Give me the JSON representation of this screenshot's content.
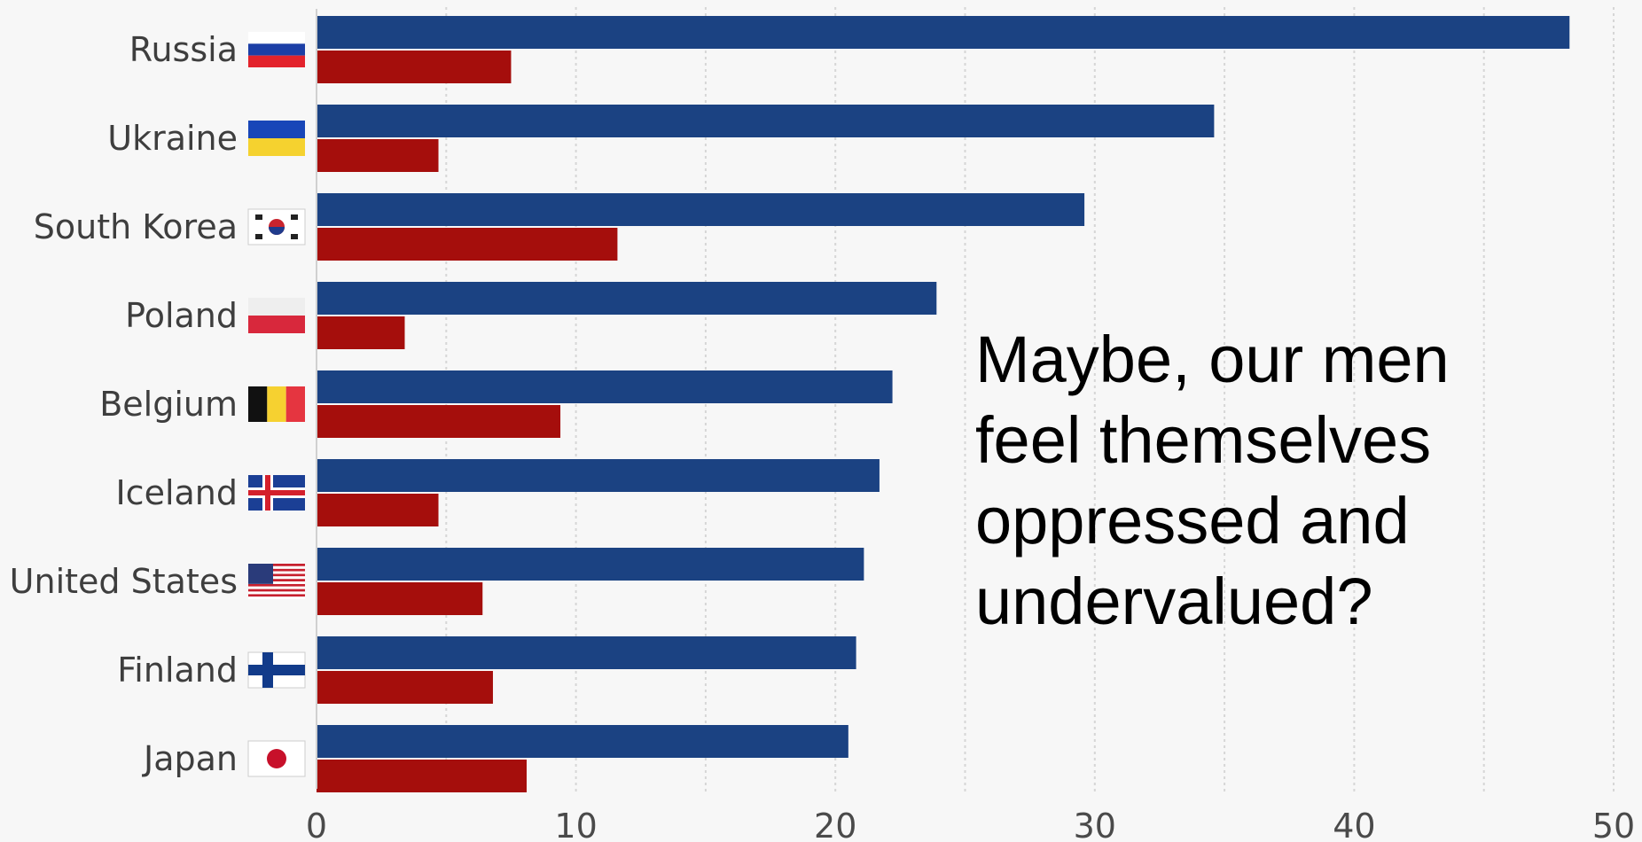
{
  "chart_data": {
    "type": "bar",
    "orientation": "horizontal",
    "categories": [
      "Russia",
      "Ukraine",
      "South Korea",
      "Poland",
      "Belgium",
      "Iceland",
      "United States",
      "Finland",
      "Japan"
    ],
    "series": [
      {
        "color": "#1b4282",
        "values": [
          48.3,
          34.6,
          29.6,
          23.9,
          22.2,
          21.7,
          21.1,
          20.8,
          20.5
        ]
      },
      {
        "color": "#a50e0c",
        "values": [
          7.5,
          4.7,
          11.6,
          3.4,
          9.4,
          4.7,
          6.4,
          6.8,
          8.1
        ]
      }
    ],
    "xticks": [
      "0",
      "10",
      "20",
      "30",
      "40",
      "50"
    ],
    "xlim": [
      0,
      50
    ],
    "grid": true,
    "flags": [
      "russia-flag",
      "ukraine-flag",
      "south-korea-flag",
      "poland-flag",
      "belgium-flag",
      "iceland-flag",
      "united-states-flag",
      "finland-flag",
      "japan-flag"
    ]
  },
  "annotation": {
    "lines": [
      "Maybe, our men",
      "feel themselves",
      "oppressed and",
      "undervalued?"
    ]
  }
}
